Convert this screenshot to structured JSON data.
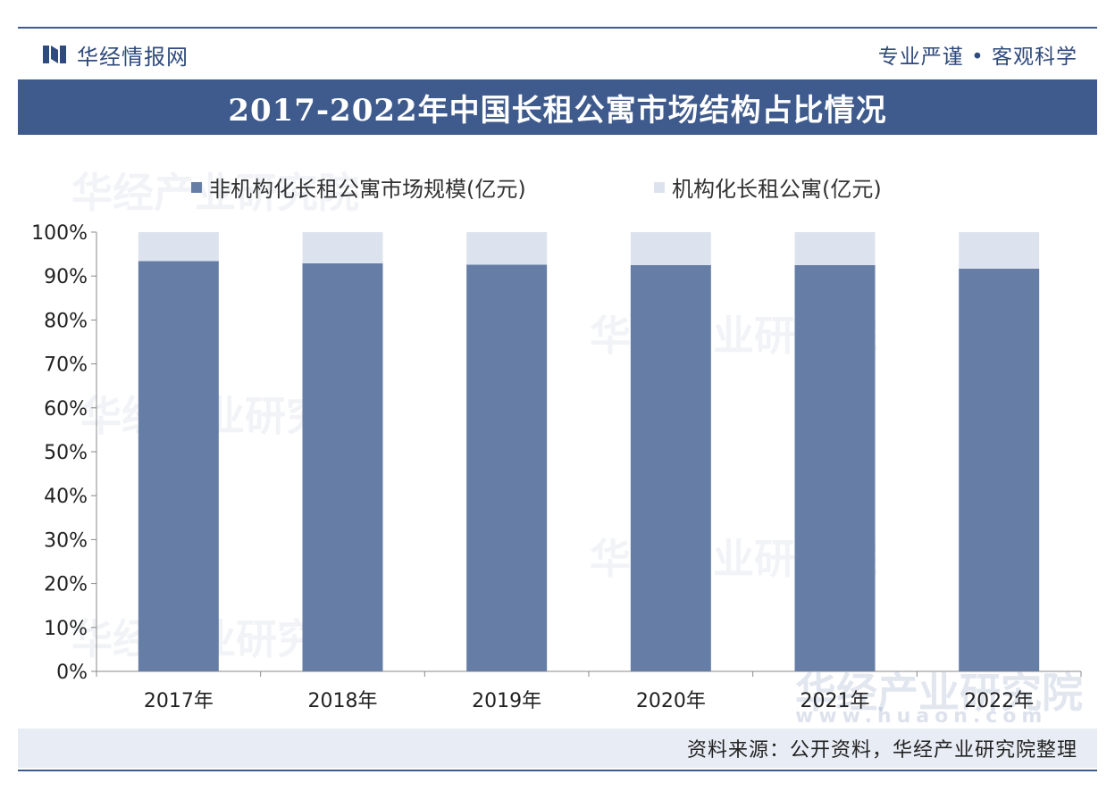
{
  "header": {
    "brand_name": "华经情报网",
    "slogan": "专业严谨 • 客观科学"
  },
  "title": "2017-2022年中国长租公寓市场结构占比情况",
  "source": "资料来源：公开资料，华经产业研究院整理",
  "watermark": {
    "name": "华经产业研究院",
    "site": "www.huaon.com"
  },
  "colors": {
    "primary": "#3f5b8d",
    "non_institutional": "#667ea6",
    "institutional": "#dde3ee",
    "footer_bg": "#e8ecf5"
  },
  "icons": [
    "brand-logo-icon"
  ],
  "chart_data": {
    "type": "bar",
    "stacked": true,
    "percent_stacked": true,
    "categories": [
      "2017年",
      "2018年",
      "2019年",
      "2020年",
      "2021年",
      "2022年"
    ],
    "series": [
      {
        "name": "非机构化长租公寓市场规模(亿元)",
        "values": [
          93.4,
          92.9,
          92.6,
          92.5,
          92.5,
          91.7
        ]
      },
      {
        "name": "机构化长租公寓(亿元)",
        "values": [
          6.6,
          7.1,
          7.4,
          7.5,
          7.5,
          8.3
        ]
      }
    ],
    "ylim": [
      0,
      100
    ],
    "yticks": [
      "0%",
      "10%",
      "20%",
      "30%",
      "40%",
      "50%",
      "60%",
      "70%",
      "80%",
      "90%",
      "100%"
    ],
    "legend": "top",
    "grid": false
  }
}
